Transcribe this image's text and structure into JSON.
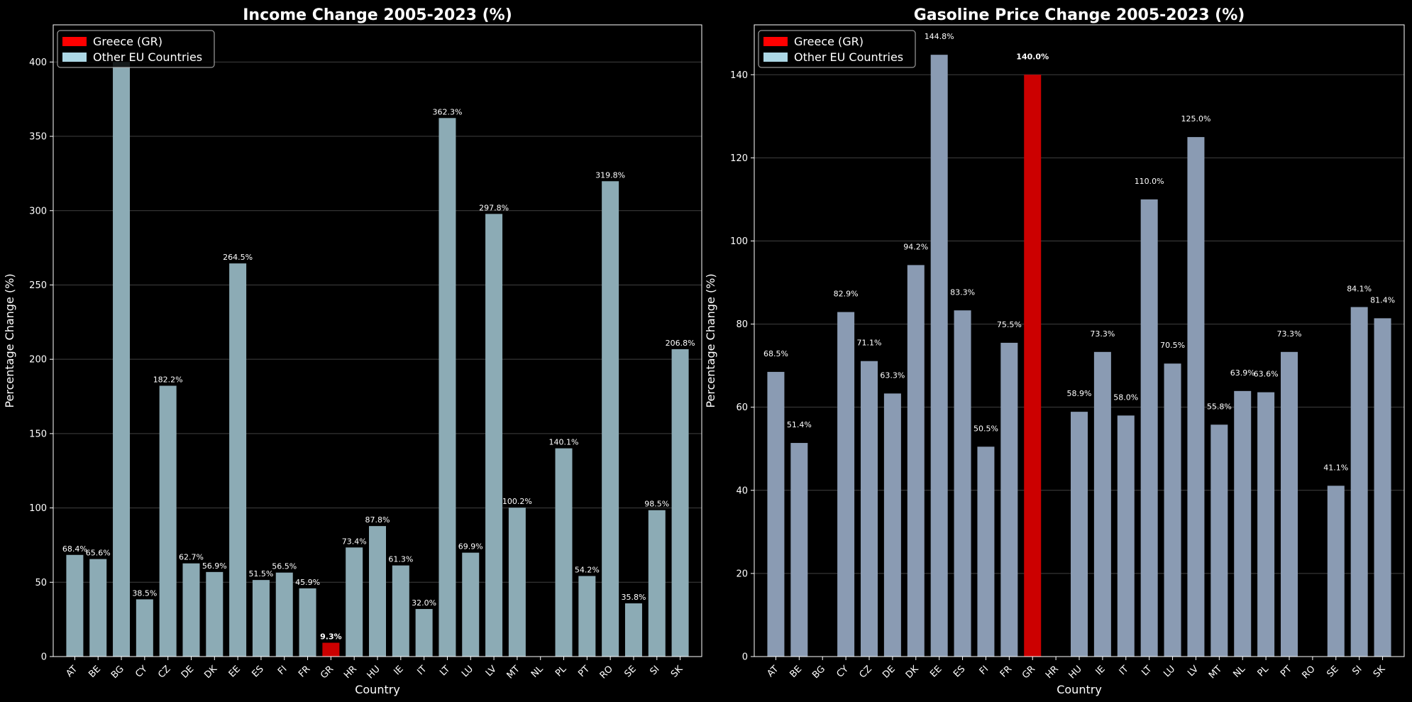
{
  "chart_data": [
    {
      "type": "bar",
      "title": "Income Change 2005-2023 (%)",
      "xlabel": "Country",
      "ylabel": "Percentage Change (%)",
      "ylim": [
        0,
        425
      ],
      "yticks": [
        0,
        50,
        100,
        150,
        200,
        250,
        300,
        350,
        400
      ],
      "grid": "y",
      "legend_position": "top-left",
      "legend": [
        {
          "label": "Greece (GR)",
          "color": "#ff0000"
        },
        {
          "label": "Other EU Countries",
          "color": "#add8e6"
        }
      ],
      "highlight": "GR",
      "highlight_color": "#cc0000",
      "bar_color": "#8cabb5",
      "categories": [
        "AT",
        "BE",
        "BG",
        "CY",
        "CZ",
        "DE",
        "DK",
        "EE",
        "ES",
        "FI",
        "FR",
        "GR",
        "HR",
        "HU",
        "IE",
        "IT",
        "LT",
        "LU",
        "LV",
        "MT",
        "NL",
        "PL",
        "PT",
        "RO",
        "SE",
        "SI",
        "SK"
      ],
      "values": [
        68.4,
        65.6,
        400,
        38.5,
        182.2,
        62.7,
        56.9,
        264.5,
        51.5,
        56.5,
        45.9,
        9.3,
        73.4,
        87.8,
        61.3,
        32.0,
        362.3,
        69.9,
        297.8,
        100.2,
        null,
        140.1,
        54.2,
        319.8,
        35.8,
        98.5,
        206.8
      ],
      "data_labels": [
        "68.4%",
        "65.6%",
        "",
        "38.5%",
        "182.2%",
        "62.7%",
        "56.9%",
        "264.5%",
        "51.5%",
        "56.5%",
        "45.9%",
        "9.3%",
        "73.4%",
        "87.8%",
        "61.3%",
        "32.0%",
        "362.3%",
        "69.9%",
        "297.8%",
        "100.2%",
        "",
        "140.1%",
        "54.2%",
        "319.8%",
        "35.8%",
        "98.5%",
        "206.8%"
      ]
    },
    {
      "type": "bar",
      "title": "Gasoline Price Change 2005-2023 (%)",
      "xlabel": "Country",
      "ylabel": "Percentage Change (%)",
      "ylim": [
        0,
        152
      ],
      "yticks": [
        0,
        20,
        40,
        60,
        80,
        100,
        120,
        140
      ],
      "grid": "y",
      "legend_position": "top-left",
      "legend": [
        {
          "label": "Greece (GR)",
          "color": "#ff0000"
        },
        {
          "label": "Other EU Countries",
          "color": "#add8e6"
        }
      ],
      "highlight": "GR",
      "highlight_color": "#cc0000",
      "bar_color": "#8a9bb3",
      "categories": [
        "AT",
        "BE",
        "BG",
        "CY",
        "CZ",
        "DE",
        "DK",
        "EE",
        "ES",
        "FI",
        "FR",
        "GR",
        "HR",
        "HU",
        "IE",
        "IT",
        "LT",
        "LU",
        "LV",
        "MT",
        "NL",
        "PL",
        "PT",
        "RO",
        "SE",
        "SI",
        "SK"
      ],
      "values": [
        68.5,
        51.4,
        null,
        82.9,
        71.1,
        63.3,
        94.2,
        144.8,
        83.3,
        50.5,
        75.5,
        140.0,
        null,
        58.9,
        73.3,
        58.0,
        110.0,
        70.5,
        125.0,
        55.8,
        63.9,
        63.6,
        73.3,
        null,
        41.1,
        84.1,
        81.4
      ],
      "data_labels": [
        "68.5%",
        "51.4%",
        "",
        "82.9%",
        "71.1%",
        "63.3%",
        "94.2%",
        "144.8%",
        "83.3%",
        "50.5%",
        "75.5%",
        "140.0%",
        "",
        "58.9%",
        "73.3%",
        "58.0%",
        "110.0%",
        "70.5%",
        "125.0%",
        "55.8%",
        "63.9%",
        "63.6%",
        "73.3%",
        "",
        "41.1%",
        "84.1%",
        "81.4%"
      ]
    }
  ]
}
